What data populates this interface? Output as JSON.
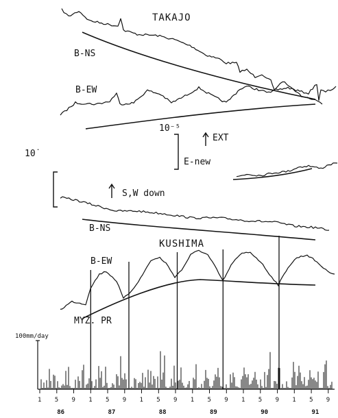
{
  "chart_data": {
    "type": "line",
    "stations": [
      {
        "name": "TAKAJO",
        "traces": [
          "B-NS",
          "B-EW"
        ]
      },
      {
        "name": "KUSHIMA",
        "traces": [
          "B-NS",
          "B-EW"
        ]
      }
    ],
    "labels": {
      "takajo_title": "TAKAJO",
      "kushima_title": "KUSHIMA",
      "takajo_bns": "B-NS",
      "takajo_bew": "B-EW",
      "kushima_bns": "B-NS",
      "kushima_bew": "B-EW",
      "scale_right": "10⁻⁵",
      "scale_left": "10˙",
      "ext": "EXT",
      "enew": "E-new",
      "swdown": "S,W down",
      "myzpr": "MYZ. PR",
      "rain_unit": "100mm/day"
    },
    "x_ticks": [
      "1",
      "5",
      "9",
      "1",
      "5",
      "9",
      "1",
      "5",
      "9",
      "1",
      "5",
      "9",
      "1",
      "5",
      "9",
      "1",
      "5",
      "9"
    ],
    "years": [
      "86",
      "87",
      "88",
      "89",
      "90",
      "91"
    ],
    "x_range": [
      1986.0,
      1991.75
    ],
    "rain_ylim": [
      0,
      100
    ],
    "rain_marker": 100,
    "kushima_bew_peaks": [
      1987.0,
      1987.75,
      1988.7,
      1989.6,
      1990.7
    ]
  }
}
